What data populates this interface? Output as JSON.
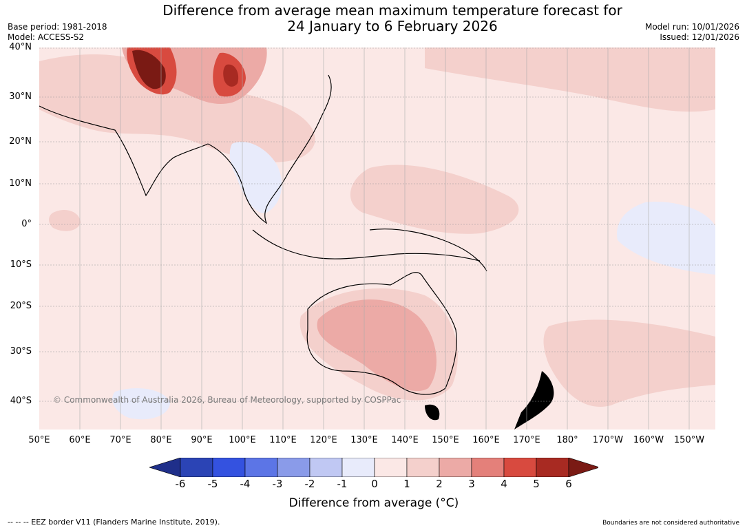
{
  "title": {
    "line1": "Difference from average mean maximum temperature forecast for",
    "line2": "24 January to 6 February 2026"
  },
  "meta_left": {
    "base_period": "Base period: 1981-2018",
    "model": "Model: ACCESS-S2"
  },
  "meta_right": {
    "model_run": "Model run: 10/01/2026",
    "issued": "Issued: 12/01/2026"
  },
  "map": {
    "latitude_labels": [
      "40°N",
      "30°N",
      "20°N",
      "10°N",
      "0°",
      "10°S",
      "20°S",
      "30°S",
      "40°S"
    ],
    "longitude_labels": [
      "50°E",
      "60°E",
      "70°E",
      "80°E",
      "90°E",
      "100°E",
      "110°E",
      "120°E",
      "130°E",
      "140°E",
      "150°E",
      "160°E",
      "170°E",
      "180°",
      "170°W",
      "160°W",
      "150°W"
    ],
    "copyright": "© Commonwealth of Australia 2026, Bureau of Meteorology, supported by COSPPac"
  },
  "colorbar": {
    "ticks": [
      "-6",
      "-5",
      "-4",
      "-3",
      "-2",
      "-1",
      "0",
      "1",
      "2",
      "3",
      "4",
      "5",
      "6"
    ],
    "colors": [
      "#1f2f8a",
      "#2b44b5",
      "#3452e0",
      "#5c75e6",
      "#8a9be9",
      "#c0c8f3",
      "#e8ebfb",
      "#fbe8e6",
      "#f4d0cc",
      "#ecaaa6",
      "#e4807a",
      "#d84a3f",
      "#a82a22",
      "#7a1a14"
    ],
    "label": "Difference from average (°C)"
  },
  "footer": {
    "eez": "--  --  -- EEZ border V11 (Flanders Marine Institute, 2019).",
    "disclaimer": "Boundaries are not considered authoritative"
  }
}
